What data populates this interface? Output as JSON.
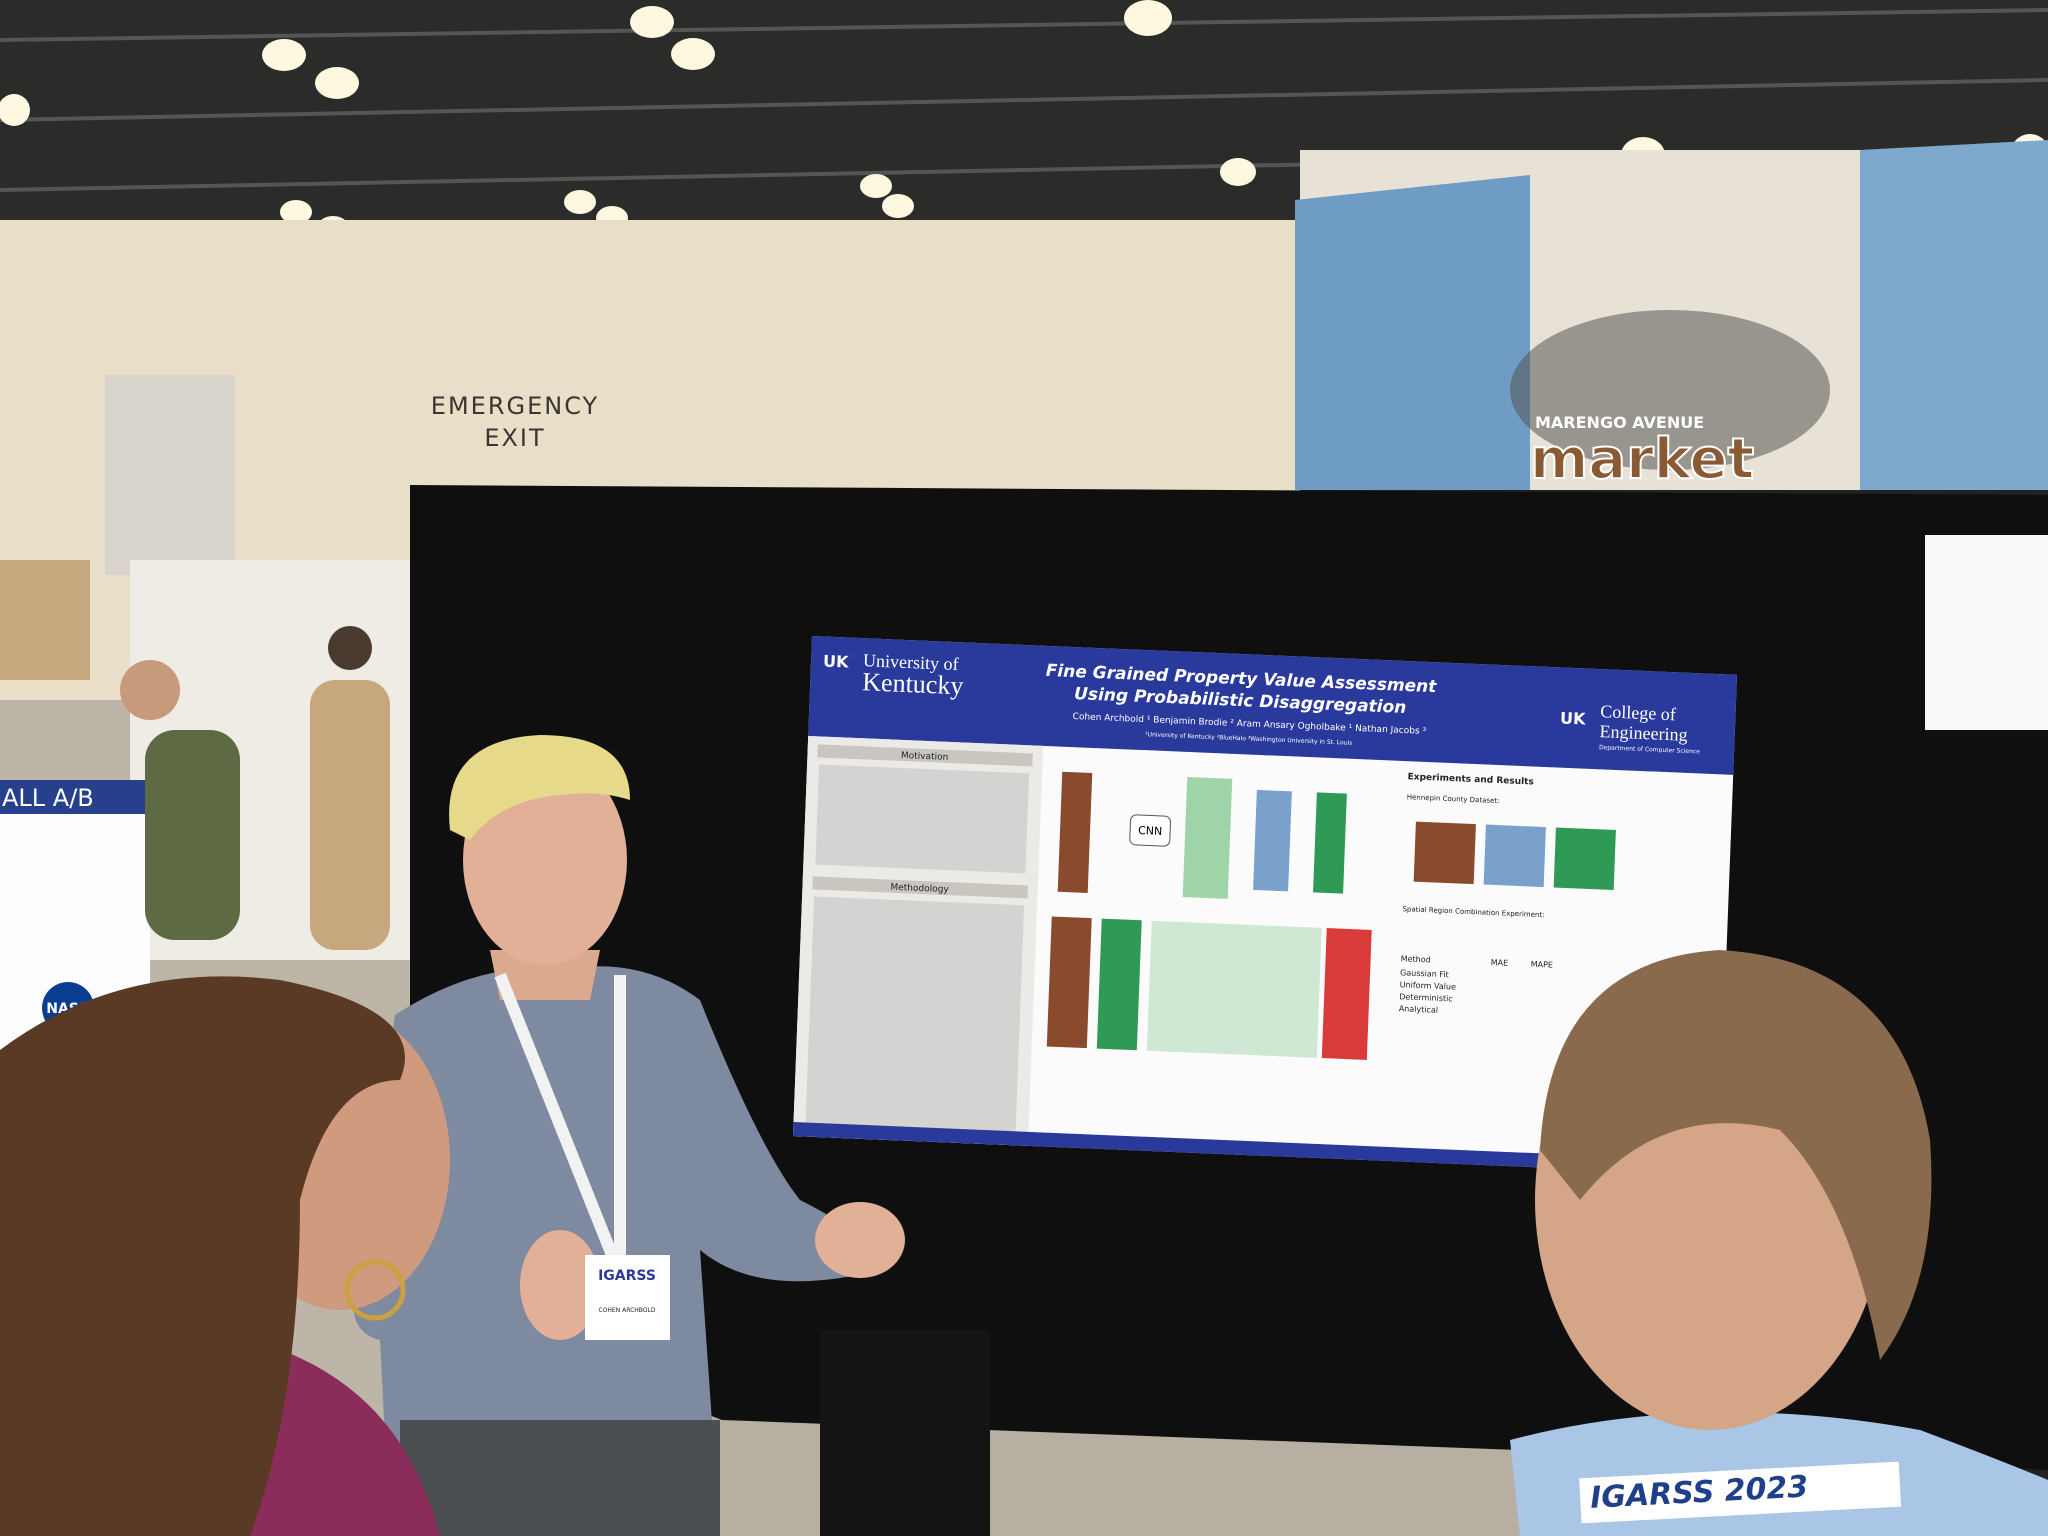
{
  "signs": {
    "emergency_exit": [
      "EMERGENCY",
      "EXIT"
    ],
    "market": {
      "top": "MARENGO AVENUE",
      "name": "market"
    }
  },
  "poster": {
    "university": [
      "University of",
      "Kentucky"
    ],
    "title": [
      "Fine Grained Property Value Assessment",
      "Using Probabilistic Disaggregation"
    ],
    "authors": "Cohen Archbold ¹   Benjamin Brodie ²   Aram Ansary Ogholbake ¹   Nathan Jacobs ³",
    "affiliations": "¹University of Kentucky   ²BlueHalo   ³Washington University in St. Louis",
    "college": [
      "College of",
      "Engineering"
    ],
    "department": "Department of Computer Science",
    "sections": [
      "Motivation",
      "Methodology",
      "Experiments and Results"
    ],
    "cnn": "CNN",
    "dataset": "Hennepin County Dataset:",
    "experiment": "Spatial Region Combination Experiment:",
    "table": {
      "header": [
        "Method",
        "MAE",
        "MAPE"
      ],
      "methods": [
        "Gaussian Fit",
        "Uniform Value",
        "Deterministic",
        "Analytical"
      ]
    }
  },
  "badge": {
    "event": "IGARSS",
    "name": "COHEN ARCHBOLD"
  },
  "lanyard": "IGARSS 2023",
  "side_poster": {
    "title": "ALL A/B",
    "logo": "NASA"
  }
}
